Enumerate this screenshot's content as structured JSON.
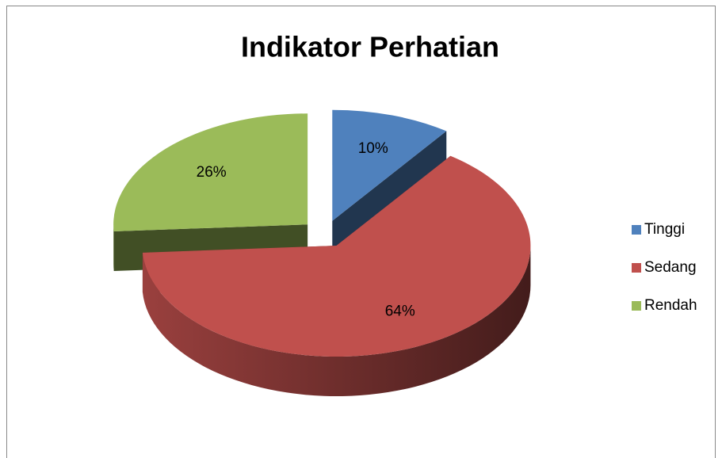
{
  "chart_data": {
    "type": "pie",
    "title": "Indikator Perhatian",
    "categories": [
      "Tinggi",
      "Sedang",
      "Rendah"
    ],
    "values": [
      10,
      64,
      26
    ],
    "value_labels": [
      "10%",
      "64%",
      "26%"
    ],
    "colors": [
      "#4f81bd",
      "#c0504d",
      "#9bbb59"
    ],
    "legend": "right"
  }
}
